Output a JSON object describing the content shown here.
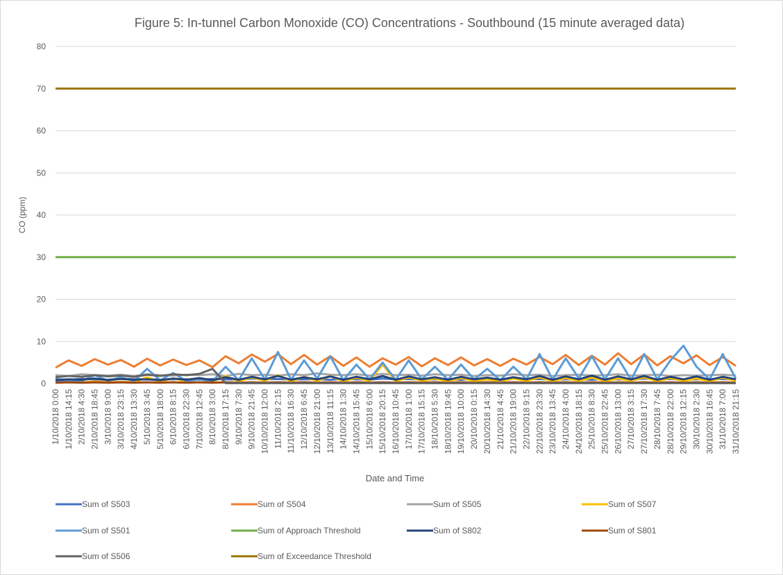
{
  "chart_data": {
    "type": "line",
    "title": "Figure 5:  In-tunnel Carbon Monoxide (CO) Concentrations - Southbound (15 minute averaged data)",
    "x_label": "Date and Time",
    "y_label": "CO (ppm)",
    "ylim": [
      0,
      80
    ],
    "yticks": [
      0,
      10,
      20,
      30,
      40,
      50,
      60,
      70,
      80
    ],
    "grid": true,
    "categories": [
      "1/10/2018 0:00",
      "1/10/2018 14:15",
      "2/10/2018 4:30",
      "2/10/2018 18:45",
      "3/10/2018 9:00",
      "3/10/2018 23:15",
      "4/10/2018 13:30",
      "5/10/2018 3:45",
      "5/10/2018 18:00",
      "6/10/2018 8:15",
      "6/10/2018 22:30",
      "7/10/2018 12:45",
      "8/10/2018 3:00",
      "8/10/2018 17:15",
      "9/10/2018 7:30",
      "9/10/2018 21:45",
      "10/10/2018 12:00",
      "11/10/2018 2:15",
      "11/10/2018 16:30",
      "12/10/2018 6:45",
      "12/10/2018 21:00",
      "13/10/2018 11:15",
      "14/10/2018 1:30",
      "14/10/2018 15:45",
      "15/10/2018 6:00",
      "15/10/2018 20:15",
      "16/10/2018 10:45",
      "17/10/2018 1:00",
      "17/10/2018 15:15",
      "18/10/2018 5:30",
      "18/10/2018 19:45",
      "19/10/2018 10:00",
      "20/10/2018 0:15",
      "20/10/2018 14:30",
      "21/10/2018 4:45",
      "21/10/2018 19:00",
      "22/10/2018 9:15",
      "22/10/2018 23:30",
      "23/10/2018 13:45",
      "24/10/2018 4:00",
      "24/10/2018 18:15",
      "25/10/2018 8:30",
      "25/10/2018 22:45",
      "26/10/2018 13:00",
      "27/10/2018 3:15",
      "27/10/2018 17:30",
      "28/10/2018 7:45",
      "28/10/2018 22:00",
      "29/10/2018 12:15",
      "30/10/2018 2:30",
      "30/10/2018 16:45",
      "31/10/2018 7:00",
      "31/10/2018 21:15"
    ],
    "series": [
      {
        "name": "Sum of S503",
        "color": "#4472c4",
        "values": [
          1.0,
          0.9,
          1.1,
          1.0,
          0.9,
          1.2,
          1.0,
          1.1,
          0.9,
          1.0,
          1.0,
          0.9,
          1.1,
          1.0,
          0.9,
          1.2,
          1.0,
          1.1,
          0.9,
          1.0,
          1.0,
          0.9,
          1.1,
          1.0,
          0.9,
          1.2,
          1.0,
          1.1,
          0.9,
          1.0,
          1.0,
          0.9,
          1.1,
          1.0,
          0.9,
          1.2,
          1.0,
          1.1,
          0.9,
          1.0,
          1.0,
          0.9,
          1.1,
          1.0,
          0.9,
          1.2,
          1.0,
          1.1,
          0.9,
          1.0,
          1.0,
          1.1,
          0.9
        ]
      },
      {
        "name": "Sum of S504",
        "color": "#ed7d31",
        "values": [
          3.8,
          5.5,
          4.2,
          5.8,
          4.5,
          5.6,
          4.0,
          5.9,
          4.3,
          5.7,
          4.4,
          5.5,
          3.9,
          6.5,
          4.8,
          6.9,
          5.2,
          7.0,
          4.6,
          6.8,
          4.5,
          6.5,
          4.2,
          6.2,
          4.0,
          6.0,
          4.5,
          6.3,
          4.1,
          6.0,
          4.4,
          6.2,
          4.3,
          5.8,
          4.2,
          5.9,
          4.5,
          6.3,
          4.6,
          6.8,
          4.4,
          6.6,
          4.5,
          7.2,
          4.6,
          6.9,
          4.3,
          6.5,
          4.8,
          6.7,
          4.4,
          6.3,
          4.2
        ]
      },
      {
        "name": "Sum of S505",
        "color": "#a5a5a5",
        "values": [
          2.0,
          1.8,
          2.2,
          2.0,
          1.9,
          2.1,
          1.8,
          2.2,
          2.0,
          1.9,
          2.1,
          2.0,
          2.2,
          1.8,
          2.3,
          2.0,
          2.1,
          1.9,
          2.2,
          2.0,
          2.4,
          2.1,
          2.0,
          2.2,
          1.9,
          2.3,
          2.0,
          2.1,
          1.9,
          2.2,
          2.0,
          2.1,
          1.8,
          2.0,
          1.9,
          2.2,
          2.0,
          2.1,
          1.8,
          2.0,
          2.1,
          1.9,
          2.0,
          2.2,
          1.9,
          2.0,
          2.1,
          1.8,
          2.0,
          1.9,
          2.0,
          2.1,
          1.9
        ]
      },
      {
        "name": "Sum of S507",
        "color": "#ffc000",
        "values": [
          0.3,
          0.4,
          0.3,
          0.5,
          0.3,
          0.4,
          0.3,
          1.5,
          0.4,
          1.2,
          0.5,
          1.0,
          0.4,
          1.8,
          0.5,
          1.5,
          0.6,
          2.0,
          0.5,
          1.6,
          0.6,
          1.8,
          0.5,
          1.4,
          0.6,
          4.5,
          0.5,
          1.5,
          0.6,
          1.2,
          0.5,
          1.3,
          0.6,
          1.0,
          0.5,
          1.2,
          0.6,
          1.5,
          0.5,
          1.3,
          0.6,
          1.4,
          0.5,
          1.2,
          0.6,
          1.5,
          0.5,
          1.3,
          0.6,
          1.2,
          0.5,
          1.4,
          0.6
        ]
      },
      {
        "name": "Sum of S501",
        "color": "#5b9bd5",
        "values": [
          0.5,
          0.8,
          0.6,
          2.0,
          0.7,
          1.5,
          0.6,
          3.5,
          0.8,
          2.5,
          0.6,
          1.0,
          0.5,
          4.0,
          0.8,
          6.0,
          1.0,
          7.5,
          0.9,
          5.5,
          1.2,
          6.5,
          0.8,
          4.5,
          1.0,
          5.0,
          0.9,
          5.5,
          1.0,
          4.0,
          0.9,
          4.5,
          1.0,
          3.5,
          0.8,
          4.0,
          1.0,
          7.0,
          0.9,
          6.0,
          1.2,
          6.5,
          1.0,
          6.0,
          0.9,
          7.0,
          1.0,
          5.5,
          9.0,
          4.0,
          1.0,
          7.0,
          1.2
        ]
      },
      {
        "name": "Sum of Approach Threshold",
        "color": "#70ad47",
        "values": [
          30,
          30,
          30,
          30,
          30,
          30,
          30,
          30,
          30,
          30,
          30,
          30,
          30,
          30,
          30,
          30,
          30,
          30,
          30,
          30,
          30,
          30,
          30,
          30,
          30,
          30,
          30,
          30,
          30,
          30,
          30,
          30,
          30,
          30,
          30,
          30,
          30,
          30,
          30,
          30,
          30,
          30,
          30,
          30,
          30,
          30,
          30,
          30,
          30,
          30,
          30,
          30,
          30
        ]
      },
      {
        "name": "Sum of S802",
        "color": "#264478",
        "values": [
          0.8,
          1.0,
          0.9,
          1.2,
          0.8,
          1.1,
          0.9,
          1.0,
          0.8,
          1.2,
          0.9,
          1.3,
          0.8,
          1.5,
          0.9,
          1.6,
          1.0,
          1.8,
          0.9,
          1.5,
          1.0,
          1.7,
          0.9,
          1.6,
          1.0,
          1.8,
          0.9,
          1.7,
          1.0,
          1.5,
          0.9,
          1.6,
          1.0,
          1.4,
          0.9,
          1.5,
          1.0,
          1.8,
          0.9,
          1.7,
          1.0,
          1.9,
          0.9,
          1.7,
          1.0,
          1.8,
          0.9,
          1.6,
          1.0,
          1.7,
          0.9,
          1.6,
          1.0
        ]
      },
      {
        "name": "Sum of S801",
        "color": "#9e480e",
        "values": [
          0.2,
          0.3,
          0.2,
          0.3,
          0.2,
          0.3,
          0.2,
          0.3,
          0.2,
          0.3,
          0.2,
          0.3,
          0.2,
          0.3,
          0.2,
          0.3,
          0.2,
          0.3,
          0.2,
          0.3,
          0.2,
          0.3,
          0.2,
          0.3,
          0.2,
          0.3,
          0.2,
          0.3,
          0.2,
          0.3,
          0.2,
          0.3,
          0.2,
          0.3,
          0.2,
          0.3,
          0.2,
          0.3,
          0.2,
          0.3,
          0.2,
          0.3,
          0.2,
          0.3,
          0.2,
          0.3,
          0.2,
          0.3,
          0.2,
          0.3,
          0.2,
          0.3,
          0.2
        ]
      },
      {
        "name": "Sum of S506",
        "color": "#636363",
        "values": [
          1.5,
          1.8,
          1.6,
          2.0,
          1.7,
          1.9,
          1.6,
          2.1,
          1.8,
          2.2,
          2.0,
          2.3,
          3.5,
          0.1,
          0.1,
          0.1,
          0.1,
          0.1,
          0.1,
          0.1,
          0.1,
          0.1,
          0.1,
          0.1,
          0.1,
          0.1,
          0.1,
          0.1,
          0.1,
          0.1,
          0.1,
          0.1,
          0.1,
          0.1,
          0.1,
          0.1,
          0.1,
          0.1,
          0.1,
          0.1,
          0.1,
          0.1,
          0.1,
          0.1,
          0.1,
          0.1,
          0.1,
          0.1,
          0.1,
          0.1,
          0.1,
          0.1,
          0.1
        ]
      },
      {
        "name": "Sum of Exceedance Threshold",
        "color": "#997300",
        "values": [
          70,
          70,
          70,
          70,
          70,
          70,
          70,
          70,
          70,
          70,
          70,
          70,
          70,
          70,
          70,
          70,
          70,
          70,
          70,
          70,
          70,
          70,
          70,
          70,
          70,
          70,
          70,
          70,
          70,
          70,
          70,
          70,
          70,
          70,
          70,
          70,
          70,
          70,
          70,
          70,
          70,
          70,
          70,
          70,
          70,
          70,
          70,
          70,
          70,
          70,
          70,
          70,
          70
        ]
      }
    ]
  }
}
